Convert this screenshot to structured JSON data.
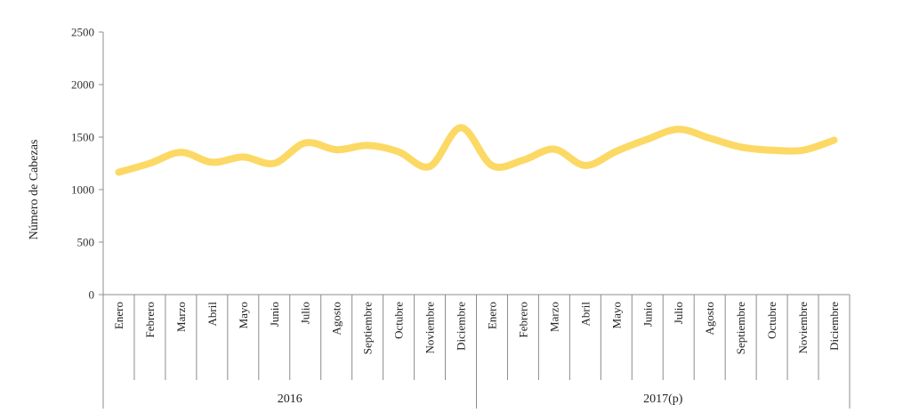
{
  "chart_data": {
    "type": "line",
    "ylabel": "Número de Cabezas",
    "ylim": [
      0,
      2500
    ],
    "yticks": [
      "0",
      "500",
      "1000",
      "1500",
      "2000",
      "2500"
    ],
    "line_color": "#fcd965",
    "grid": false,
    "groups": [
      {
        "label": "2016",
        "categories": [
          "Enero",
          "Febrero",
          "Marzo",
          "Abril",
          "Mayo",
          "Junio",
          "Julio",
          "Agosto",
          "Septiembre",
          "Octubre",
          "Noviembre",
          "Diciembre"
        ]
      },
      {
        "label": "2017(p)",
        "categories": [
          "Enero",
          "Febrero",
          "Marzo",
          "Abril",
          "Mayo",
          "Junio",
          "Julio",
          "Agosto",
          "Septiembre",
          "Octubre",
          "Noviembre",
          "Diciembre"
        ]
      }
    ],
    "values": [
      1165,
      1250,
      1355,
      1260,
      1310,
      1250,
      1445,
      1380,
      1420,
      1360,
      1220,
      1590,
      1230,
      1280,
      1385,
      1230,
      1365,
      1480,
      1575,
      1490,
      1405,
      1375,
      1375,
      1470
    ]
  }
}
